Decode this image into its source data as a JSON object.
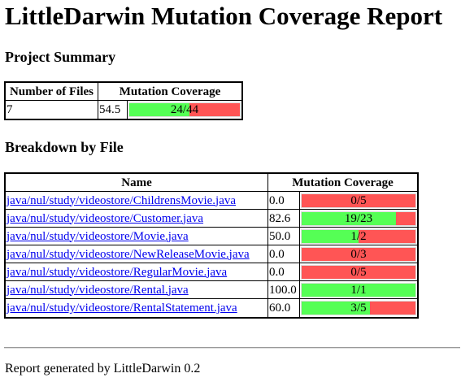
{
  "title": "LittleDarwin Mutation Coverage Report",
  "summary": {
    "heading": "Project Summary",
    "headers": {
      "files": "Number of Files",
      "coverage": "Mutation Coverage"
    },
    "files": "7",
    "percent": "54.5",
    "killed": 24,
    "total": 44,
    "ratio": "24/44"
  },
  "breakdown": {
    "heading": "Breakdown by File",
    "headers": {
      "name": "Name",
      "coverage": "Mutation Coverage"
    },
    "rows": [
      {
        "name": "java/nul/study/videostore/ChildrensMovie.java",
        "percent": "0.0",
        "killed": 0,
        "total": 5,
        "ratio": "0/5"
      },
      {
        "name": "java/nul/study/videostore/Customer.java",
        "percent": "82.6",
        "killed": 19,
        "total": 23,
        "ratio": "19/23"
      },
      {
        "name": "java/nul/study/videostore/Movie.java",
        "percent": "50.0",
        "killed": 1,
        "total": 2,
        "ratio": "1/2"
      },
      {
        "name": "java/nul/study/videostore/NewReleaseMovie.java",
        "percent": "0.0",
        "killed": 0,
        "total": 3,
        "ratio": "0/3"
      },
      {
        "name": "java/nul/study/videostore/RegularMovie.java",
        "percent": "0.0",
        "killed": 0,
        "total": 5,
        "ratio": "0/5"
      },
      {
        "name": "java/nul/study/videostore/Rental.java",
        "percent": "100.0",
        "killed": 1,
        "total": 1,
        "ratio": "1/1"
      },
      {
        "name": "java/nul/study/videostore/RentalStatement.java",
        "percent": "60.0",
        "killed": 3,
        "total": 5,
        "ratio": "3/5"
      }
    ]
  },
  "footer": "Report generated by LittleDarwin 0.2",
  "colors": {
    "killed": "#55ff55",
    "survived": "#ff5555",
    "link": "#0000ee"
  }
}
